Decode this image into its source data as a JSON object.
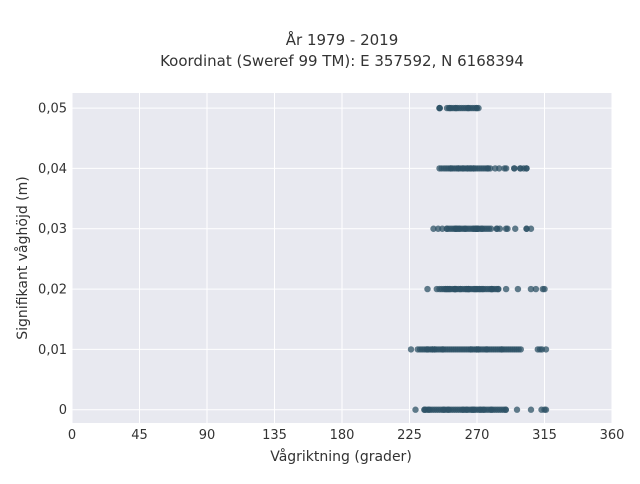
{
  "chart_data": {
    "type": "scatter",
    "title": [
      "År 1979 - 2019",
      "Koordinat (Sweref 99 TM): E 357592, N 6168394"
    ],
    "xlabel": "Vågriktning (grader)",
    "ylabel": "Signifikant våghöjd (m)",
    "xlim": [
      0,
      360
    ],
    "ylim": [
      -0.0022,
      0.0525
    ],
    "xticks": [
      0,
      45,
      90,
      135,
      180,
      225,
      270,
      315,
      360
    ],
    "xtick_labels": [
      "0",
      "45",
      "90",
      "135",
      "180",
      "225",
      "270",
      "315",
      "360"
    ],
    "yticks": [
      0,
      0.01,
      0.02,
      0.03,
      0.04,
      0.05
    ],
    "ytick_labels": [
      "0",
      "0,01",
      "0,02",
      "0,03",
      "0,04",
      "0,05"
    ],
    "grid": true,
    "marker_color": "#2e5266",
    "background_color": "#e8e9f0",
    "bands": [
      {
        "y": 0,
        "x_min": 229,
        "x_max": 306,
        "core_min": 236,
        "core_max": 290,
        "outliers": [
          313,
          315,
          316
        ]
      },
      {
        "y": 0.01,
        "x_min": 226,
        "x_max": 316,
        "core_min": 232,
        "core_max": 300,
        "outliers": []
      },
      {
        "y": 0.02,
        "x_min": 237,
        "x_max": 315,
        "core_min": 245,
        "core_max": 285,
        "outliers": []
      },
      {
        "y": 0.03,
        "x_min": 241,
        "x_max": 306,
        "core_min": 250,
        "core_max": 280,
        "outliers": [
          303
        ]
      },
      {
        "y": 0.04,
        "x_min": 245,
        "x_max": 303,
        "core_min": 248,
        "core_max": 280,
        "outliers": [
          299,
          303
        ]
      },
      {
        "y": 0.05,
        "x_min": 245,
        "x_max": 271,
        "core_min": 250,
        "core_max": 270,
        "outliers": [
          245,
          256
        ]
      }
    ]
  }
}
